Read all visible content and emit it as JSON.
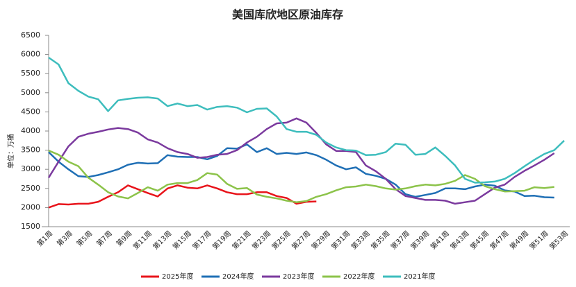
{
  "chart_data": {
    "type": "line",
    "title": "美国库欣地区原油库存",
    "y_label": "单位：万桶",
    "categories": [
      "第1周",
      null,
      "第3周",
      null,
      "第5周",
      null,
      "第7周",
      null,
      "第9周",
      null,
      "第11周",
      null,
      "第13周",
      null,
      "第15周",
      null,
      "第17周",
      null,
      "第19周",
      null,
      "第21周",
      null,
      "第23周",
      null,
      "第25周",
      null,
      "第27周",
      null,
      "第29周",
      null,
      "第31周",
      null,
      "第33周",
      null,
      "第35周",
      null,
      "第37周",
      null,
      "第39周",
      null,
      "第41周",
      null,
      "第43周",
      null,
      "第45周",
      null,
      "第47周",
      null,
      "第49周",
      null,
      "第51周",
      null,
      "第53周"
    ],
    "ylim": [
      1500,
      6500
    ],
    "yticks": [
      1500,
      2000,
      2500,
      3000,
      3500,
      4000,
      4500,
      5000,
      5500,
      6000,
      6500
    ],
    "legend": "bottom",
    "series": [
      {
        "name": "2025年度",
        "color": "#e8141b",
        "values": [
          2000,
          2090,
          2080,
          2100,
          2100,
          2150,
          2280,
          2400,
          2580,
          2480,
          2380,
          2290,
          2500,
          2580,
          2520,
          2500,
          2580,
          2500,
          2400,
          2350,
          2350,
          2400,
          2400,
          2300,
          2250,
          2100,
          2150,
          2160,
          null,
          null,
          null,
          null,
          null,
          null,
          null,
          null,
          null,
          null,
          null,
          null,
          null,
          null,
          null,
          null,
          null,
          null,
          null,
          null,
          null,
          null,
          null,
          null,
          null
        ]
      },
      {
        "name": "2024年度",
        "color": "#1f6fb5",
        "values": [
          3450,
          3200,
          3000,
          2820,
          2800,
          2850,
          2920,
          3000,
          3120,
          3170,
          3150,
          3160,
          3370,
          3330,
          3320,
          3320,
          3260,
          3350,
          3550,
          3540,
          3650,
          3450,
          3550,
          3400,
          3430,
          3400,
          3440,
          3370,
          3250,
          3100,
          3000,
          3050,
          2880,
          2830,
          2750,
          2600,
          2350,
          2280,
          2330,
          2380,
          2500,
          2500,
          2480,
          2550,
          2600,
          2570,
          2450,
          2420,
          2300,
          2310,
          2270,
          2260,
          null
        ]
      },
      {
        "name": "2023年度",
        "color": "#7b3a9e",
        "values": [
          2780,
          3200,
          3600,
          3850,
          3930,
          3980,
          4040,
          4080,
          4050,
          3960,
          3780,
          3700,
          3550,
          3450,
          3400,
          3300,
          3320,
          3380,
          3400,
          3500,
          3700,
          3850,
          4050,
          4200,
          4220,
          4330,
          4220,
          3950,
          3650,
          3480,
          3480,
          3450,
          3100,
          2950,
          2750,
          2480,
          2300,
          2250,
          2200,
          2200,
          2180,
          2100,
          2140,
          2180,
          2350,
          2520,
          2600,
          2800,
          2960,
          3100,
          3250,
          3420,
          null
        ]
      },
      {
        "name": "2022年度",
        "color": "#8cc34a",
        "values": [
          3490,
          3380,
          3200,
          3080,
          2780,
          2600,
          2400,
          2290,
          2240,
          2380,
          2530,
          2440,
          2600,
          2640,
          2640,
          2720,
          2900,
          2860,
          2620,
          2490,
          2510,
          2340,
          2280,
          2240,
          2180,
          2140,
          2170,
          2280,
          2350,
          2450,
          2530,
          2550,
          2600,
          2560,
          2500,
          2470,
          2500,
          2560,
          2600,
          2580,
          2620,
          2700,
          2850,
          2750,
          2560,
          2480,
          2420,
          2430,
          2440,
          2530,
          2510,
          2540,
          null
        ]
      },
      {
        "name": "2021年度",
        "color": "#3dbdbd",
        "values": [
          5920,
          5740,
          5250,
          5050,
          4900,
          4830,
          4520,
          4800,
          4840,
          4870,
          4880,
          4850,
          4650,
          4720,
          4650,
          4680,
          4560,
          4630,
          4650,
          4610,
          4490,
          4580,
          4590,
          4380,
          4050,
          3980,
          3980,
          3900,
          3700,
          3570,
          3500,
          3490,
          3370,
          3380,
          3450,
          3670,
          3640,
          3380,
          3400,
          3570,
          3350,
          3100,
          2750,
          2650,
          2660,
          2680,
          2750,
          2900,
          3080,
          3250,
          3400,
          3500,
          3750
        ]
      }
    ]
  }
}
